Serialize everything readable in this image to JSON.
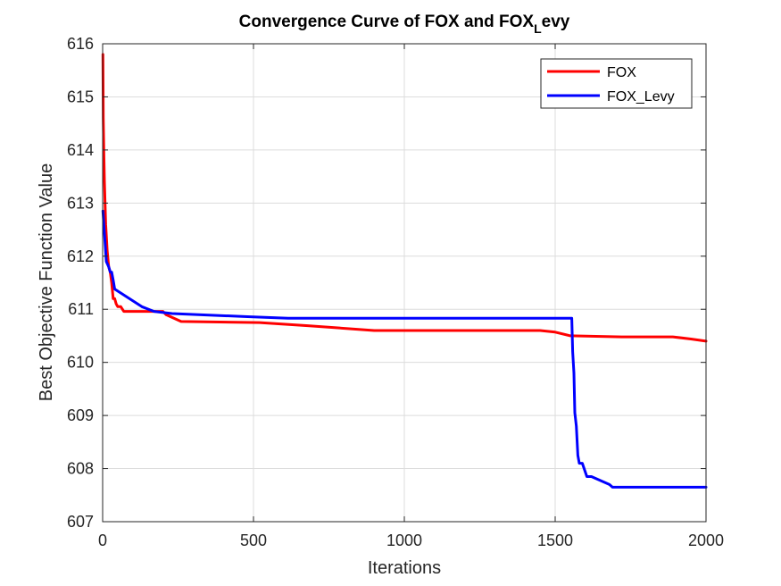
{
  "chart_data": {
    "type": "line",
    "title": "Convergence Curve of FOX and FOX_Levy",
    "title_parts": {
      "main": "Convergence Curve of FOX and FOX",
      "sub": "L",
      "tail": "evy"
    },
    "xlabel": "Iterations",
    "ylabel": "Best Objective Function Value",
    "xlim": [
      0,
      2000
    ],
    "ylim": [
      607,
      616
    ],
    "xticks": [
      0,
      500,
      1000,
      1500,
      2000
    ],
    "yticks": [
      607,
      608,
      609,
      610,
      611,
      612,
      613,
      614,
      615,
      616
    ],
    "grid": true,
    "legend_position": "top-right",
    "series": [
      {
        "name": "FOX",
        "color": "#ff0000",
        "x": [
          1,
          2,
          4,
          6,
          8,
          10,
          15,
          20,
          25,
          30,
          35,
          40,
          45,
          50,
          60,
          70,
          80,
          200,
          210,
          260,
          520,
          680,
          900,
          1450,
          1500,
          1550,
          1720,
          1890,
          1950,
          2000
        ],
        "y": [
          615.8,
          614.6,
          613.9,
          613.4,
          613.0,
          612.6,
          612.1,
          611.8,
          611.7,
          611.5,
          611.2,
          611.2,
          611.1,
          611.05,
          611.05,
          610.96,
          610.96,
          610.96,
          610.9,
          610.77,
          610.75,
          610.69,
          610.6,
          610.6,
          610.57,
          610.5,
          610.48,
          610.48,
          610.44,
          610.4
        ]
      },
      {
        "name": "FOX_Levy",
        "color": "#0000ff",
        "x": [
          1,
          5,
          12,
          20,
          25,
          30,
          35,
          40,
          130,
          170,
          230,
          480,
          615,
          1555,
          1558,
          1562,
          1565,
          1570,
          1575,
          1580,
          1590,
          1605,
          1620,
          1680,
          1690,
          2000
        ],
        "y": [
          612.85,
          612.5,
          611.9,
          611.8,
          611.7,
          611.7,
          611.55,
          611.38,
          611.05,
          610.96,
          610.92,
          610.86,
          610.83,
          610.83,
          610.2,
          609.8,
          609.05,
          608.8,
          608.25,
          608.1,
          608.1,
          607.85,
          607.85,
          607.7,
          607.65,
          607.65
        ]
      }
    ]
  }
}
